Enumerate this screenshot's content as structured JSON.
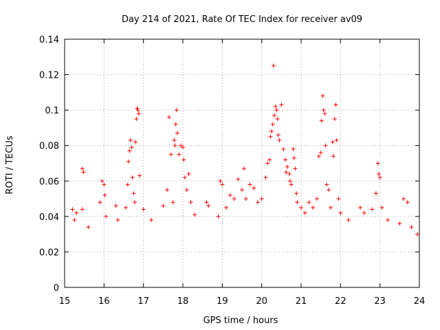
{
  "chart_data": {
    "type": "scatter",
    "title": "Day 214 of 2021, Rate Of TEC Index for receiver av09",
    "xlabel": "GPS time / hours",
    "ylabel": "ROTI / TECUs",
    "xlim": [
      15,
      24
    ],
    "ylim": [
      0,
      0.14
    ],
    "x_ticks": [
      "15",
      "16",
      "17",
      "18",
      "19",
      "20",
      "21",
      "22",
      "23",
      "24"
    ],
    "y_ticks": [
      "0",
      "0.02",
      "0.04",
      "0.06",
      "0.08",
      "0.1",
      "0.12",
      "0.14"
    ],
    "grid": true,
    "marker": "+",
    "color": "#ff0000",
    "series": [
      {
        "name": "ROTI",
        "points": [
          [
            15.2,
            0.044
          ],
          [
            15.25,
            0.038
          ],
          [
            15.3,
            0.042
          ],
          [
            15.45,
            0.067
          ],
          [
            15.48,
            0.065
          ],
          [
            15.45,
            0.044
          ],
          [
            15.6,
            0.034
          ],
          [
            15.9,
            0.048
          ],
          [
            15.95,
            0.06
          ],
          [
            16.0,
            0.058
          ],
          [
            16.02,
            0.052
          ],
          [
            16.05,
            0.04
          ],
          [
            16.3,
            0.046
          ],
          [
            16.35,
            0.038
          ],
          [
            16.55,
            0.045
          ],
          [
            16.6,
            0.058
          ],
          [
            16.62,
            0.071
          ],
          [
            16.65,
            0.077
          ],
          [
            16.67,
            0.083
          ],
          [
            16.7,
            0.079
          ],
          [
            16.72,
            0.062
          ],
          [
            16.75,
            0.053
          ],
          [
            16.78,
            0.048
          ],
          [
            16.8,
            0.082
          ],
          [
            16.82,
            0.095
          ],
          [
            16.84,
            0.101
          ],
          [
            16.86,
            0.1
          ],
          [
            16.88,
            0.098
          ],
          [
            16.9,
            0.063
          ],
          [
            17.0,
            0.044
          ],
          [
            17.2,
            0.038
          ],
          [
            17.5,
            0.046
          ],
          [
            17.6,
            0.055
          ],
          [
            17.65,
            0.096
          ],
          [
            17.7,
            0.075
          ],
          [
            17.75,
            0.048
          ],
          [
            17.78,
            0.083
          ],
          [
            17.8,
            0.08
          ],
          [
            17.82,
            0.092
          ],
          [
            17.84,
            0.1
          ],
          [
            17.86,
            0.087
          ],
          [
            17.9,
            0.075
          ],
          [
            17.95,
            0.08
          ],
          [
            18.0,
            0.079
          ],
          [
            18.02,
            0.072
          ],
          [
            18.05,
            0.062
          ],
          [
            18.1,
            0.055
          ],
          [
            18.15,
            0.064
          ],
          [
            18.2,
            0.048
          ],
          [
            18.3,
            0.041
          ],
          [
            18.6,
            0.048
          ],
          [
            18.65,
            0.046
          ],
          [
            18.9,
            0.04
          ],
          [
            18.95,
            0.06
          ],
          [
            19.0,
            0.058
          ],
          [
            19.1,
            0.045
          ],
          [
            19.2,
            0.052
          ],
          [
            19.3,
            0.05
          ],
          [
            19.4,
            0.061
          ],
          [
            19.5,
            0.055
          ],
          [
            19.55,
            0.067
          ],
          [
            19.6,
            0.05
          ],
          [
            19.7,
            0.058
          ],
          [
            19.8,
            0.056
          ],
          [
            19.9,
            0.048
          ],
          [
            20.0,
            0.05
          ],
          [
            20.1,
            0.062
          ],
          [
            20.15,
            0.07
          ],
          [
            20.2,
            0.072
          ],
          [
            20.22,
            0.085
          ],
          [
            20.25,
            0.088
          ],
          [
            20.28,
            0.092
          ],
          [
            20.3,
            0.125
          ],
          [
            20.32,
            0.097
          ],
          [
            20.35,
            0.102
          ],
          [
            20.38,
            0.1
          ],
          [
            20.4,
            0.095
          ],
          [
            20.42,
            0.086
          ],
          [
            20.45,
            0.083
          ],
          [
            20.5,
            0.103
          ],
          [
            20.55,
            0.078
          ],
          [
            20.6,
            0.072
          ],
          [
            20.62,
            0.065
          ],
          [
            20.65,
            0.068
          ],
          [
            20.7,
            0.064
          ],
          [
            20.72,
            0.06
          ],
          [
            20.75,
            0.058
          ],
          [
            20.8,
            0.078
          ],
          [
            20.82,
            0.073
          ],
          [
            20.85,
            0.067
          ],
          [
            20.88,
            0.053
          ],
          [
            20.9,
            0.048
          ],
          [
            21.0,
            0.045
          ],
          [
            21.1,
            0.042
          ],
          [
            21.2,
            0.048
          ],
          [
            21.3,
            0.045
          ],
          [
            21.4,
            0.05
          ],
          [
            21.45,
            0.074
          ],
          [
            21.5,
            0.076
          ],
          [
            21.52,
            0.094
          ],
          [
            21.55,
            0.108
          ],
          [
            21.57,
            0.1
          ],
          [
            21.6,
            0.098
          ],
          [
            21.62,
            0.08
          ],
          [
            21.65,
            0.058
          ],
          [
            21.7,
            0.055
          ],
          [
            21.75,
            0.045
          ],
          [
            21.8,
            0.082
          ],
          [
            21.82,
            0.074
          ],
          [
            21.85,
            0.095
          ],
          [
            21.88,
            0.103
          ],
          [
            21.9,
            0.083
          ],
          [
            21.95,
            0.05
          ],
          [
            22.0,
            0.042
          ],
          [
            22.2,
            0.038
          ],
          [
            22.5,
            0.045
          ],
          [
            22.6,
            0.042
          ],
          [
            22.8,
            0.044
          ],
          [
            22.9,
            0.053
          ],
          [
            22.95,
            0.07
          ],
          [
            22.97,
            0.064
          ],
          [
            23.0,
            0.062
          ],
          [
            23.05,
            0.045
          ],
          [
            23.2,
            0.038
          ],
          [
            23.5,
            0.036
          ],
          [
            23.6,
            0.05
          ],
          [
            23.7,
            0.048
          ],
          [
            23.8,
            0.034
          ],
          [
            23.95,
            0.03
          ]
        ]
      }
    ]
  }
}
